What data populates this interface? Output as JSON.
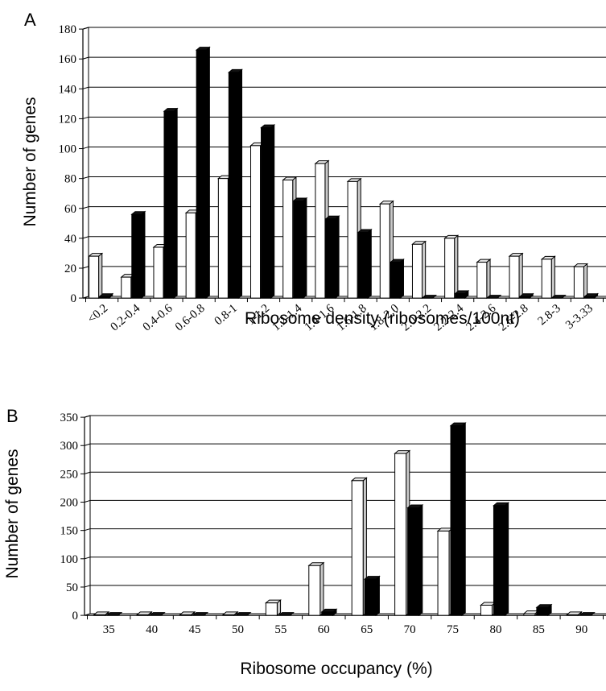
{
  "chart_data": [
    {
      "type": "bar",
      "panel_letter": "A",
      "ylabel": "Number of genes",
      "xlabel": "Ribosome density (ribosomes/100nt)",
      "ylim": [
        0,
        180
      ],
      "yticks": [
        "0",
        "20",
        "40",
        "60",
        "80",
        "100",
        "120",
        "140",
        "160",
        "180"
      ],
      "grid": true,
      "categories": [
        "<0.2",
        "0.2-0.4",
        "0.4-0.6",
        "0.6-0.8",
        "0.8-1",
        "1-1.2",
        "1.2-1.4",
        "1.4-1.6",
        "1.6-1.8",
        "1.8-2.0",
        "2.0-2.2",
        "2.2-2.4",
        "2.4-2.6",
        "2.6-2.8",
        "2.8-3",
        "3-3.33"
      ],
      "series": [
        {
          "color": "#ffffff",
          "values": [
            28,
            14,
            34,
            57,
            80,
            102,
            79,
            90,
            78,
            63,
            36,
            40,
            24,
            28,
            26,
            21
          ]
        },
        {
          "color": "#000000",
          "values": [
            1,
            56,
            125,
            166,
            151,
            114,
            65,
            53,
            44,
            24,
            0,
            3,
            0,
            1,
            0,
            1
          ]
        }
      ]
    },
    {
      "type": "bar",
      "panel_letter": "B",
      "ylabel": "Number of genes",
      "xlabel": "Ribosome occupancy (%)",
      "ylim": [
        0,
        350
      ],
      "yticks": [
        "0",
        "50",
        "100",
        "150",
        "200",
        "250",
        "300",
        "350"
      ],
      "grid": true,
      "categories": [
        "35",
        "40",
        "45",
        "50",
        "55",
        "60",
        "65",
        "70",
        "75",
        "80",
        "85",
        "90"
      ],
      "series": [
        {
          "color": "#ffffff",
          "values": [
            1,
            1,
            1,
            1,
            22,
            88,
            238,
            286,
            149,
            18,
            3,
            1
          ]
        },
        {
          "color": "#000000",
          "values": [
            0,
            0,
            0,
            0,
            0,
            6,
            64,
            190,
            335,
            194,
            14,
            0
          ]
        }
      ]
    }
  ]
}
